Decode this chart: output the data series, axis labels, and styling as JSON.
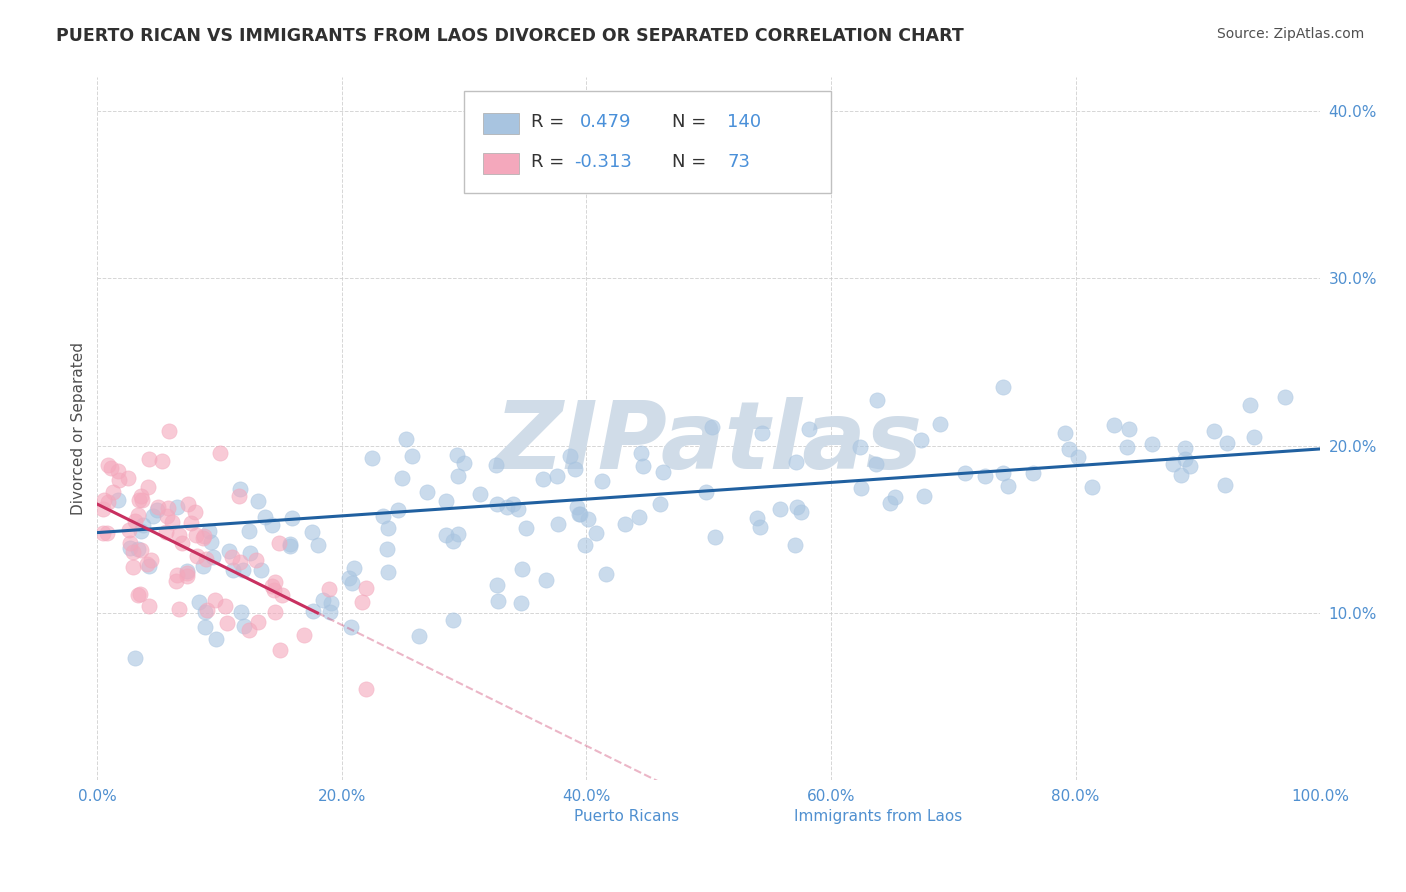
{
  "title": "PUERTO RICAN VS IMMIGRANTS FROM LAOS DIVORCED OR SEPARATED CORRELATION CHART",
  "source": "Source: ZipAtlas.com",
  "ylabel": "Divorced or Separated",
  "xlim": [
    0,
    1.0
  ],
  "ylim": [
    0.0,
    0.42
  ],
  "xticks": [
    0.0,
    0.2,
    0.4,
    0.6,
    0.8,
    1.0
  ],
  "xtick_labels": [
    "0.0%",
    "20.0%",
    "40.0%",
    "60.0%",
    "80.0%",
    "100.0%"
  ],
  "yticks": [
    0.0,
    0.1,
    0.2,
    0.3,
    0.4
  ],
  "ytick_labels": [
    "",
    "10.0%",
    "20.0%",
    "30.0%",
    "40.0%"
  ],
  "r_blue": 0.479,
  "n_blue": 140,
  "r_pink": -0.313,
  "n_pink": 73,
  "blue_color": "#a8c4e0",
  "pink_color": "#f4a8bc",
  "blue_line_color": "#2060a0",
  "pink_line_color": "#c83060",
  "watermark": "ZIPatlas",
  "watermark_color": "#d0dce8",
  "background_color": "#ffffff",
  "title_color": "#303030",
  "title_fontsize": 12.5,
  "axis_label_color": "#505050",
  "tick_color": "#5090d0",
  "legend_r_color": "#4a90d9",
  "grid_color": "#cccccc",
  "bottom_label_color": "#5090d0"
}
